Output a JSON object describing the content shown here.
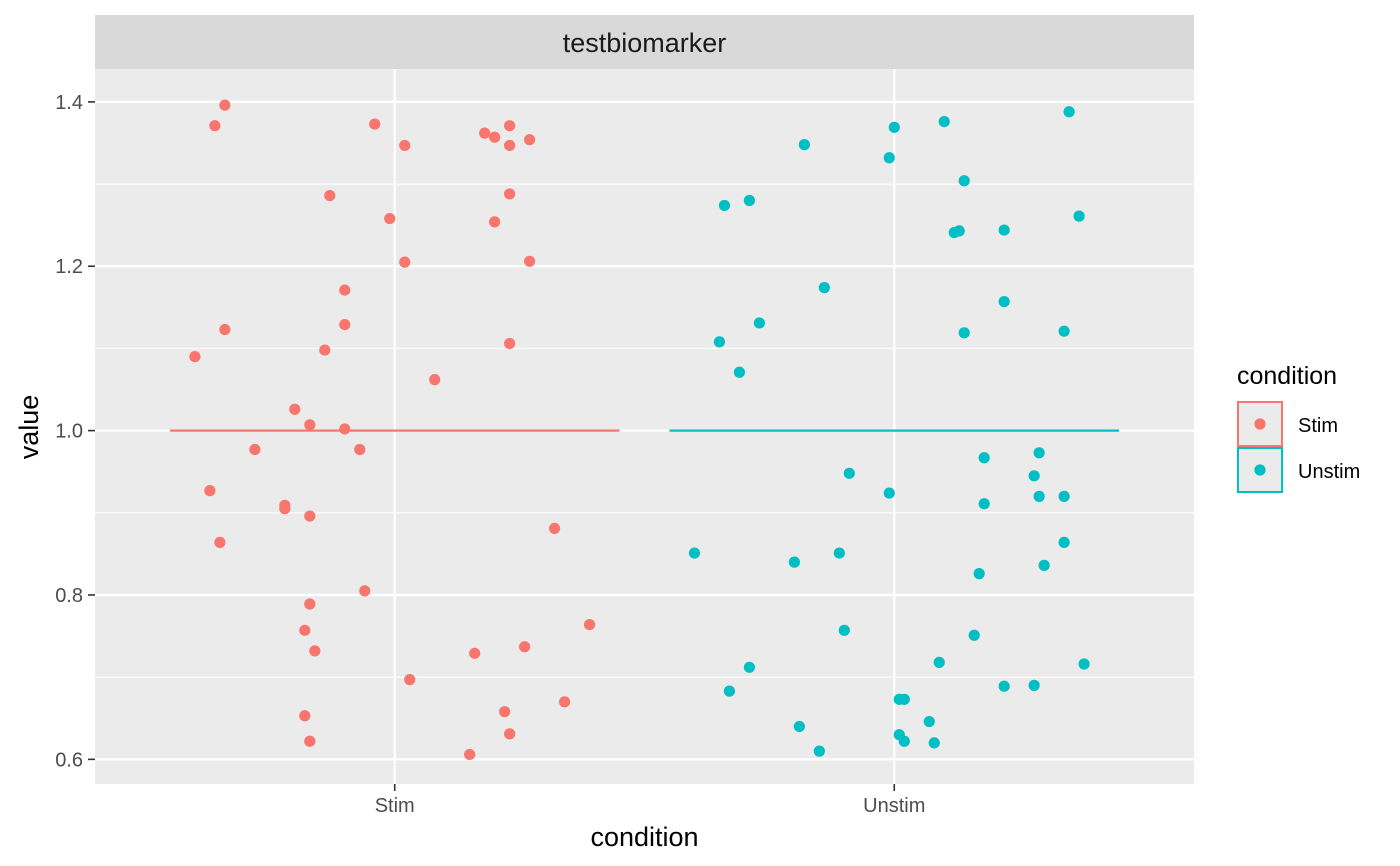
{
  "chart_data": {
    "type": "scatter",
    "facet_title": "testbiomarker",
    "xlabel": "condition",
    "ylabel": "value",
    "categories": [
      "Stim",
      "Unstim"
    ],
    "ylim": [
      0.57,
      1.44
    ],
    "yticks": [
      0.6,
      0.8,
      1.0,
      1.2,
      1.4
    ],
    "ytick_labels": [
      "0.6",
      "0.8",
      "1.0",
      "1.2",
      "1.4"
    ],
    "grid": true,
    "legend": {
      "title": "condition",
      "position": "right",
      "entries": [
        "Stim",
        "Unstim"
      ]
    },
    "colors": {
      "Stim": "#F8766D",
      "Unstim": "#00BFC4",
      "panel": "#EBEBEB",
      "strip": "#D9D9D9",
      "grid": "#FFFFFF"
    },
    "hlines": [
      {
        "series": "Stim",
        "value": 1.0
      },
      {
        "series": "Unstim",
        "value": 1.0
      }
    ],
    "series": [
      {
        "name": "Stim",
        "points": [
          {
            "x": 0.66,
            "y": 1.396
          },
          {
            "x": 0.64,
            "y": 1.371
          },
          {
            "x": 0.96,
            "y": 1.373
          },
          {
            "x": 1.02,
            "y": 1.347
          },
          {
            "x": 1.18,
            "y": 1.362
          },
          {
            "x": 1.2,
            "y": 1.357
          },
          {
            "x": 1.23,
            "y": 1.371
          },
          {
            "x": 1.23,
            "y": 1.347
          },
          {
            "x": 1.27,
            "y": 1.354
          },
          {
            "x": 0.87,
            "y": 1.286
          },
          {
            "x": 1.23,
            "y": 1.288
          },
          {
            "x": 0.99,
            "y": 1.258
          },
          {
            "x": 1.2,
            "y": 1.254
          },
          {
            "x": 1.02,
            "y": 1.205
          },
          {
            "x": 1.27,
            "y": 1.206
          },
          {
            "x": 0.9,
            "y": 1.171
          },
          {
            "x": 0.9,
            "y": 1.129
          },
          {
            "x": 0.66,
            "y": 1.123
          },
          {
            "x": 1.23,
            "y": 1.106
          },
          {
            "x": 0.86,
            "y": 1.098
          },
          {
            "x": 0.6,
            "y": 1.09
          },
          {
            "x": 1.08,
            "y": 1.062
          },
          {
            "x": 0.8,
            "y": 1.026
          },
          {
            "x": 0.83,
            "y": 1.007
          },
          {
            "x": 0.9,
            "y": 1.002
          },
          {
            "x": 0.72,
            "y": 0.977
          },
          {
            "x": 0.93,
            "y": 0.977
          },
          {
            "x": 0.63,
            "y": 0.927
          },
          {
            "x": 0.78,
            "y": 0.909
          },
          {
            "x": 0.78,
            "y": 0.905
          },
          {
            "x": 0.83,
            "y": 0.896
          },
          {
            "x": 1.32,
            "y": 0.881
          },
          {
            "x": 0.65,
            "y": 0.864
          },
          {
            "x": 0.94,
            "y": 0.805
          },
          {
            "x": 0.83,
            "y": 0.789
          },
          {
            "x": 1.39,
            "y": 0.764
          },
          {
            "x": 0.82,
            "y": 0.757
          },
          {
            "x": 1.26,
            "y": 0.737
          },
          {
            "x": 0.84,
            "y": 0.732
          },
          {
            "x": 1.16,
            "y": 0.729
          },
          {
            "x": 1.03,
            "y": 0.697
          },
          {
            "x": 1.34,
            "y": 0.67
          },
          {
            "x": 1.22,
            "y": 0.658
          },
          {
            "x": 0.82,
            "y": 0.653
          },
          {
            "x": 1.23,
            "y": 0.631
          },
          {
            "x": 0.83,
            "y": 0.622
          },
          {
            "x": 1.15,
            "y": 0.606
          }
        ]
      },
      {
        "name": "Unstim",
        "points": [
          {
            "x": 2.35,
            "y": 1.388
          },
          {
            "x": 2.1,
            "y": 1.376
          },
          {
            "x": 2.0,
            "y": 1.369
          },
          {
            "x": 1.82,
            "y": 1.348
          },
          {
            "x": 1.99,
            "y": 1.332
          },
          {
            "x": 2.14,
            "y": 1.304
          },
          {
            "x": 1.71,
            "y": 1.28
          },
          {
            "x": 1.66,
            "y": 1.274
          },
          {
            "x": 2.37,
            "y": 1.261
          },
          {
            "x": 2.22,
            "y": 1.244
          },
          {
            "x": 2.13,
            "y": 1.243
          },
          {
            "x": 2.12,
            "y": 1.241
          },
          {
            "x": 1.86,
            "y": 1.174
          },
          {
            "x": 2.22,
            "y": 1.157
          },
          {
            "x": 1.73,
            "y": 1.131
          },
          {
            "x": 2.14,
            "y": 1.119
          },
          {
            "x": 2.34,
            "y": 1.121
          },
          {
            "x": 1.65,
            "y": 1.108
          },
          {
            "x": 1.69,
            "y": 1.071
          },
          {
            "x": 2.29,
            "y": 0.973
          },
          {
            "x": 2.18,
            "y": 0.967
          },
          {
            "x": 1.91,
            "y": 0.948
          },
          {
            "x": 2.28,
            "y": 0.945
          },
          {
            "x": 1.99,
            "y": 0.924
          },
          {
            "x": 2.29,
            "y": 0.92
          },
          {
            "x": 2.34,
            "y": 0.92
          },
          {
            "x": 2.18,
            "y": 0.911
          },
          {
            "x": 2.34,
            "y": 0.864
          },
          {
            "x": 1.6,
            "y": 0.851
          },
          {
            "x": 1.89,
            "y": 0.851
          },
          {
            "x": 1.8,
            "y": 0.84
          },
          {
            "x": 2.3,
            "y": 0.836
          },
          {
            "x": 2.17,
            "y": 0.826
          },
          {
            "x": 1.9,
            "y": 0.757
          },
          {
            "x": 2.16,
            "y": 0.751
          },
          {
            "x": 2.09,
            "y": 0.718
          },
          {
            "x": 2.38,
            "y": 0.716
          },
          {
            "x": 1.71,
            "y": 0.712
          },
          {
            "x": 2.22,
            "y": 0.689
          },
          {
            "x": 2.28,
            "y": 0.69
          },
          {
            "x": 1.67,
            "y": 0.683
          },
          {
            "x": 2.01,
            "y": 0.673
          },
          {
            "x": 2.02,
            "y": 0.673
          },
          {
            "x": 2.07,
            "y": 0.646
          },
          {
            "x": 1.81,
            "y": 0.64
          },
          {
            "x": 2.01,
            "y": 0.63
          },
          {
            "x": 2.02,
            "y": 0.622
          },
          {
            "x": 2.08,
            "y": 0.62
          },
          {
            "x": 1.85,
            "y": 0.61
          }
        ]
      }
    ]
  }
}
